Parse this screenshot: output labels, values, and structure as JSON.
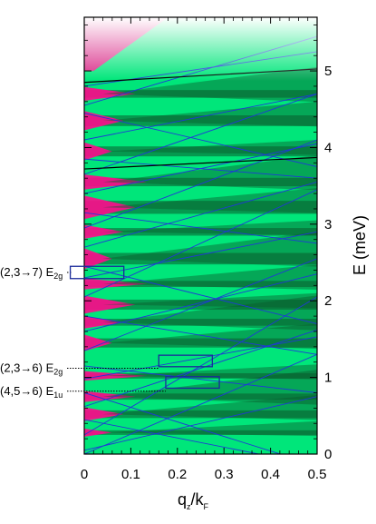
{
  "chart_data": {
    "type": "heatmap",
    "title": "",
    "xlabel_main": "q",
    "xlabel_sub1": "z",
    "xlabel_mid": "/k",
    "xlabel_sub2": "F",
    "ylabel": "E (meV)",
    "xlim": [
      0,
      0.5
    ],
    "ylim": [
      0,
      5.7
    ],
    "x_ticks": [
      0,
      0.1,
      0.2,
      0.3,
      0.4,
      0.5
    ],
    "x_tick_labels": [
      "0",
      "0.1",
      "0.2",
      "0.3",
      "0.4",
      "0.5"
    ],
    "y_ticks": [
      0,
      1,
      2,
      3,
      4,
      5
    ],
    "y_tick_labels": [
      "0",
      "1",
      "2",
      "3",
      "4",
      "5"
    ],
    "y_axis_side": "right",
    "colors": {
      "background_green": "#00e67a",
      "dark_green": "#0a5a2c",
      "magenta": "#ff0a8c",
      "mode_lines": "#2038d8",
      "frame": "#000000"
    },
    "horizontal_bands": [
      {
        "e": 0.28,
        "extent": 0.06
      },
      {
        "e": 0.52,
        "extent": 0.1
      },
      {
        "e": 0.75,
        "extent": 0.08
      },
      {
        "e": 1.02,
        "extent": 0.07
      },
      {
        "e": 1.45,
        "extent": 0.12
      },
      {
        "e": 1.72,
        "extent": 0.09
      },
      {
        "e": 1.95,
        "extent": 0.13
      },
      {
        "e": 2.22,
        "extent": 0.08
      },
      {
        "e": 2.55,
        "extent": 0.15
      },
      {
        "e": 2.9,
        "extent": 0.1
      },
      {
        "e": 3.22,
        "extent": 0.17
      },
      {
        "e": 3.55,
        "extent": 0.11
      },
      {
        "e": 3.95,
        "extent": 0.13
      },
      {
        "e": 4.35,
        "extent": 0.14
      },
      {
        "e": 4.7,
        "extent": 0.1
      }
    ],
    "dispersion_lines": [
      {
        "e0": 0.0,
        "slope": 2.6
      },
      {
        "e0": 0.05,
        "slope": 1.4
      },
      {
        "e0": 0.25,
        "slope": 3.6
      },
      {
        "e0": 0.45,
        "slope": -1.2
      },
      {
        "e0": 0.62,
        "slope": 2.0
      },
      {
        "e0": 0.8,
        "slope": -1.9
      },
      {
        "e0": 0.98,
        "slope": 1.1
      },
      {
        "e0": 1.15,
        "slope": -0.7
      },
      {
        "e0": 1.35,
        "slope": 2.4
      },
      {
        "e0": 1.6,
        "slope": 1.5
      },
      {
        "e0": 1.8,
        "slope": -1.0
      },
      {
        "e0": 2.05,
        "slope": 2.8
      },
      {
        "e0": 2.3,
        "slope": 1.2
      },
      {
        "e0": 2.45,
        "slope": -1.5
      },
      {
        "e0": 2.7,
        "slope": 1.7
      },
      {
        "e0": 2.95,
        "slope": 2.3
      },
      {
        "e0": 3.15,
        "slope": -0.8
      },
      {
        "e0": 3.4,
        "slope": 1.3
      },
      {
        "e0": 3.65,
        "slope": 2.1
      },
      {
        "e0": 3.85,
        "slope": -0.5
      },
      {
        "e0": 4.1,
        "slope": 1.2
      },
      {
        "e0": 4.45,
        "slope": -1.4
      },
      {
        "e0": 4.55,
        "slope": 1.8
      },
      {
        "e0": 4.8,
        "slope": 0.9
      }
    ],
    "black_lines": [
      {
        "e0": 3.72,
        "slope": 0.3
      },
      {
        "e0": 4.85,
        "slope": 0.35
      }
    ],
    "annotations": [
      {
        "main": "(2,3→7) E",
        "sub": "2g",
        "e": 2.37,
        "box_x": [
          -0.03,
          0.085
        ],
        "box_e": [
          2.29,
          2.45
        ]
      },
      {
        "main": "(2,3→6) E",
        "sub": "2g",
        "e": 1.12,
        "box_x": [
          0.16,
          0.275
        ],
        "box_e": [
          1.14,
          1.29
        ]
      },
      {
        "main": "(4,5→6) E",
        "sub": "1u",
        "e": 0.82,
        "box_x": [
          0.175,
          0.29
        ],
        "box_e": [
          0.86,
          1.01
        ]
      }
    ]
  }
}
